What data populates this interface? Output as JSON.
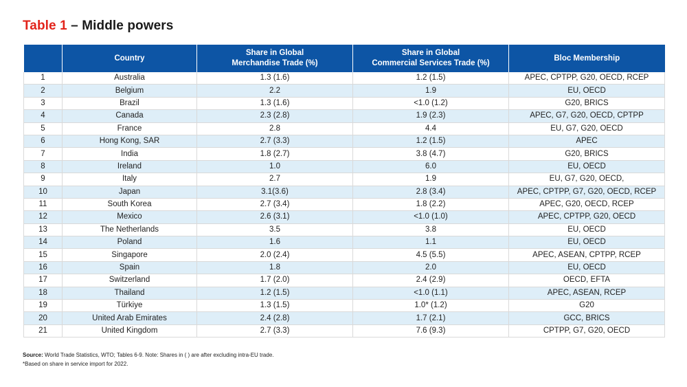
{
  "title": {
    "label": "Table 1",
    "separator": " – ",
    "name": "Middle powers"
  },
  "table": {
    "headers": {
      "number": "",
      "country": "Country",
      "merch_line1": "Share in Global",
      "merch_line2": "Merchandise Trade (%)",
      "serv_line1": "Share in Global",
      "serv_line2": "Commercial Services Trade (%)",
      "bloc": "Bloc Membership"
    },
    "rows": [
      {
        "num": "1",
        "country": "Australia",
        "merch": "1.3 (1.6)",
        "serv": "1.2 (1.5)",
        "bloc": "APEC, CPTPP, G20, OECD, RCEP"
      },
      {
        "num": "2",
        "country": "Belgium",
        "merch": "2.2",
        "serv": "1.9",
        "bloc": "EU, OECD"
      },
      {
        "num": "3",
        "country": "Brazil",
        "merch": "1.3 (1.6)",
        "serv": "<1.0 (1.2)",
        "bloc": "G20, BRICS"
      },
      {
        "num": "4",
        "country": "Canada",
        "merch": "2.3 (2.8)",
        "serv": "1.9 (2.3)",
        "bloc": "APEC, G7, G20, OECD, CPTPP"
      },
      {
        "num": "5",
        "country": "France",
        "merch": "2.8",
        "serv": "4.4",
        "bloc": "EU, G7, G20, OECD"
      },
      {
        "num": "6",
        "country": "Hong Kong, SAR",
        "merch": "2.7 (3.3)",
        "serv": "1.2 (1.5)",
        "bloc": "APEC"
      },
      {
        "num": "7",
        "country": "India",
        "merch": "1.8 (2.7)",
        "serv": "3.8 (4.7)",
        "bloc": "G20, BRICS"
      },
      {
        "num": "8",
        "country": "Ireland",
        "merch": "1.0",
        "serv": "6.0",
        "bloc": "EU, OECD"
      },
      {
        "num": "9",
        "country": "Italy",
        "merch": "2.7",
        "serv": "1.9",
        "bloc": "EU, G7, G20, OECD,"
      },
      {
        "num": "10",
        "country": "Japan",
        "merch": "3.1(3.6)",
        "serv": "2.8 (3.4)",
        "bloc": "APEC, CPTPP, G7, G20, OECD, RCEP"
      },
      {
        "num": "11",
        "country": "South Korea",
        "merch": "2.7 (3.4)",
        "serv": "1.8 (2.2)",
        "bloc": "APEC, G20, OECD, RCEP"
      },
      {
        "num": "12",
        "country": "Mexico",
        "merch": "2.6 (3.1)",
        "serv": "<1.0 (1.0)",
        "bloc": "APEC, CPTPP, G20, OECD"
      },
      {
        "num": "13",
        "country": "The Netherlands",
        "merch": "3.5",
        "serv": "3.8",
        "bloc": "EU, OECD"
      },
      {
        "num": "14",
        "country": "Poland",
        "merch": "1.6",
        "serv": "1.1",
        "bloc": "EU, OECD"
      },
      {
        "num": "15",
        "country": "Singapore",
        "merch": "2.0 (2.4)",
        "serv": "4.5 (5.5)",
        "bloc": "APEC, ASEAN, CPTPP, RCEP"
      },
      {
        "num": "16",
        "country": "Spain",
        "merch": "1.8",
        "serv": "2.0",
        "bloc": "EU, OECD"
      },
      {
        "num": "17",
        "country": "Switzerland",
        "merch": "1.7 (2.0)",
        "serv": "2.4 (2.9)",
        "bloc": "OECD, EFTA"
      },
      {
        "num": "18",
        "country": "Thailand",
        "merch": "1.2 (1.5)",
        "serv": "<1.0 (1.1)",
        "bloc": "APEC, ASEAN, RCEP"
      },
      {
        "num": "19",
        "country": "Türkiye",
        "merch": "1.3 (1.5)",
        "serv": "1.0* (1.2)",
        "bloc": "G20"
      },
      {
        "num": "20",
        "country": "United Arab Emirates",
        "merch": "2.4 (2.8)",
        "serv": "1.7 (2.1)",
        "bloc": "GCC, BRICS"
      },
      {
        "num": "21",
        "country": "United Kingdom",
        "merch": "2.7 (3.3)",
        "serv": "7.6 (9.3)",
        "bloc": "CPTPP, G7, G20, OECD"
      }
    ]
  },
  "footnotes": {
    "source_label": "Source:",
    "source_text": " World Trade Statistics, WTO; Tables 6-9. Note: Shares in ( ) are after excluding intra-EU trade.",
    "note": "*Based on share in service import for 2022."
  },
  "colors": {
    "title_accent": "#e2231a",
    "header_bg": "#0d55a5",
    "stripe_bg": "#deeef8"
  }
}
